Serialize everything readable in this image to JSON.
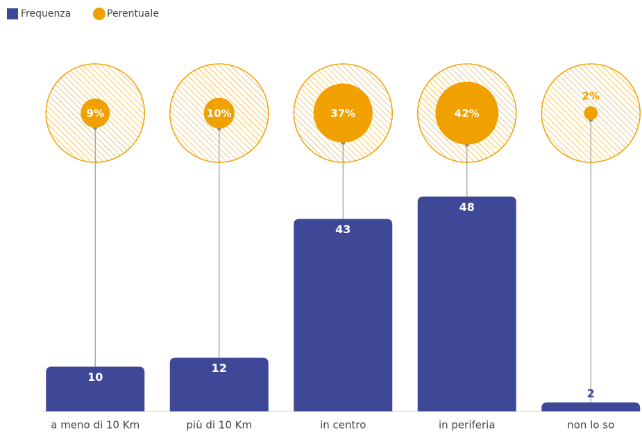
{
  "chart_data": {
    "type": "bar",
    "legend": "top-left",
    "categories": [
      "a meno  di 10 Km",
      "più di 10 Km",
      "in centro",
      "in periferia",
      "non lo so"
    ],
    "series": [
      {
        "name": "Frequenza",
        "color": "#3f4896",
        "values": [
          10,
          12,
          43,
          48,
          2
        ]
      },
      {
        "name": "Perentuale",
        "color": "#f0a100",
        "values": [
          9,
          10,
          37,
          42,
          2
        ],
        "value_labels": [
          "9%",
          "10%",
          "37%",
          "42%",
          "2%"
        ]
      }
    ]
  }
}
